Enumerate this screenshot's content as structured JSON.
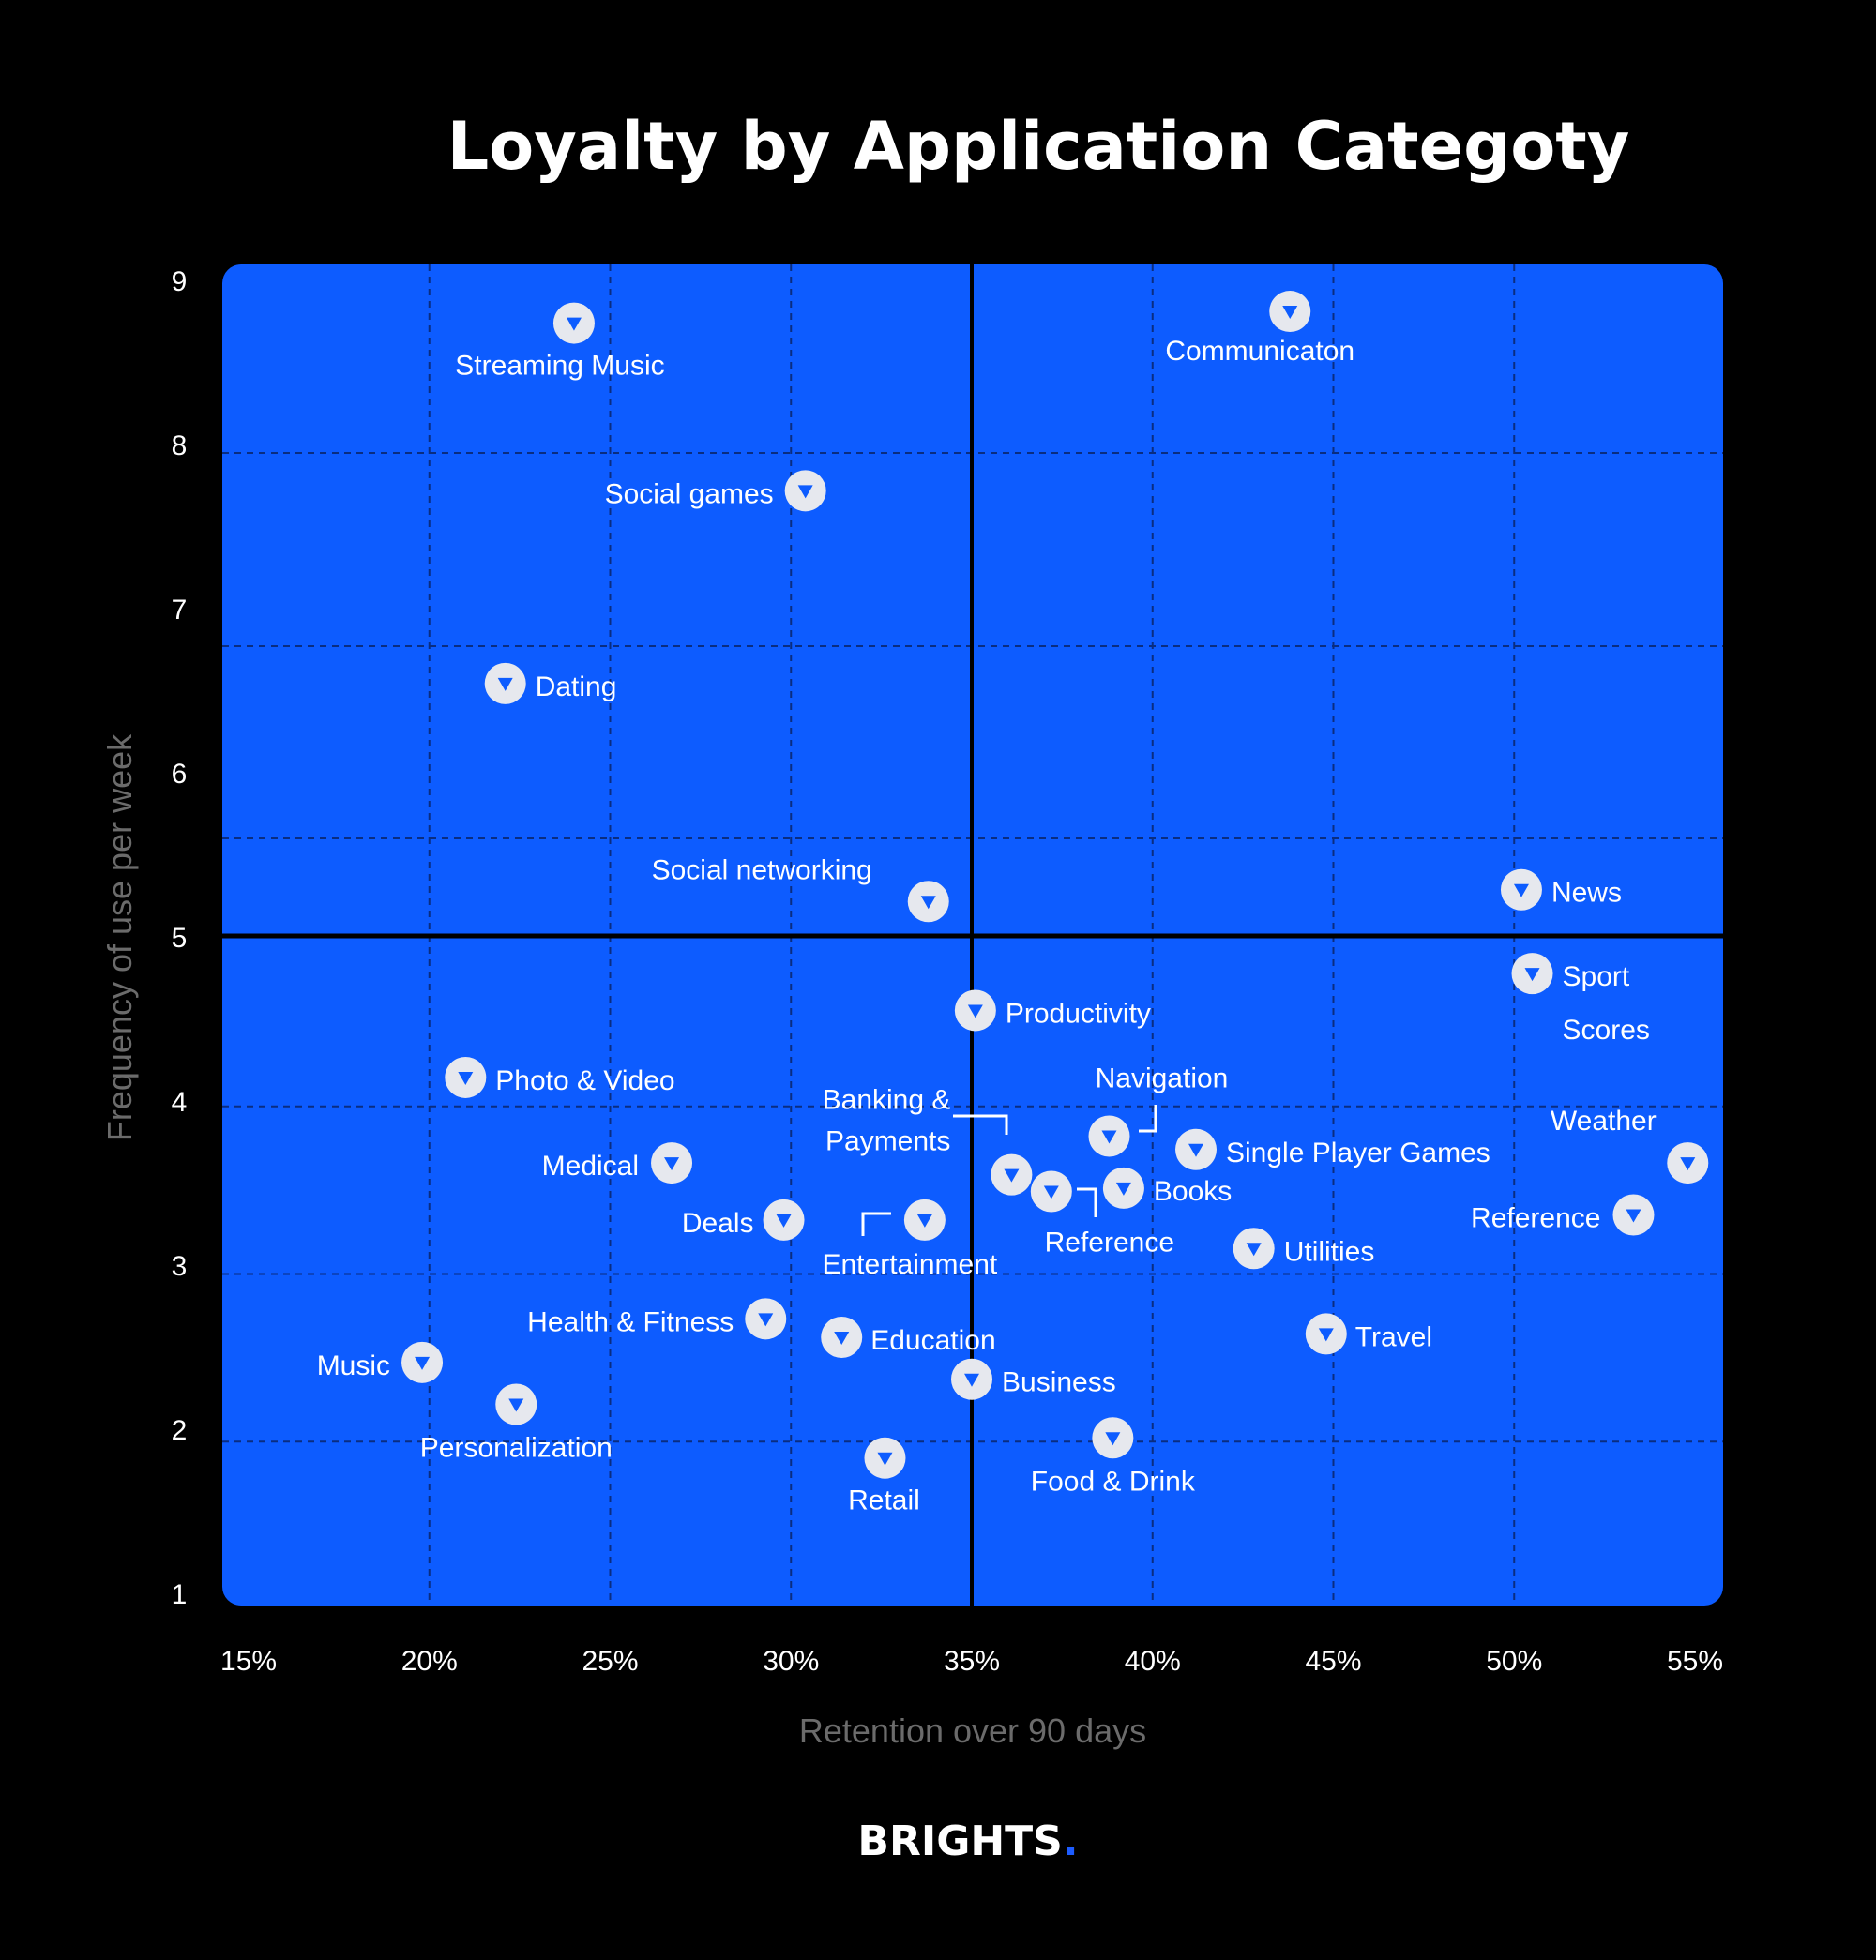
{
  "chart_data": {
    "type": "scatter",
    "title": "Loyalty by Application Categoty",
    "xlabel": "Retention over 90 days",
    "ylabel": "Frequency of use per week",
    "xlim": [
      0.15,
      0.55
    ],
    "ylim": [
      1,
      9
    ],
    "x_ticks": [
      "15%",
      "20%",
      "25%",
      "30%",
      "35%",
      "40%",
      "45%",
      "50%",
      "55%"
    ],
    "y_ticks": [
      "1",
      "2",
      "3",
      "4",
      "5",
      "6",
      "7",
      "8",
      "9"
    ],
    "quadrant_lines": {
      "x": 0.35,
      "y": 5
    },
    "grid": true,
    "colors": {
      "background": "#000000",
      "plot": "#0d5cff",
      "marker": "#e6e8ee",
      "marker_arrow": "#0d5cff",
      "axis_label": "#6b6b6b"
    },
    "points": [
      {
        "label": "Streaming Music",
        "x": 0.24,
        "y": 8.65
      },
      {
        "label": "Communicaton",
        "x": 0.438,
        "y": 8.72
      },
      {
        "label": "Social games",
        "x": 0.304,
        "y": 7.65
      },
      {
        "label": "Dating",
        "x": 0.221,
        "y": 6.5
      },
      {
        "label": "Social networking",
        "x": 0.338,
        "y": 5.2
      },
      {
        "label": "News",
        "x": 0.502,
        "y": 5.27
      },
      {
        "label": "Sport Scores",
        "x": 0.505,
        "y": 4.77
      },
      {
        "label": "Productivity",
        "x": 0.351,
        "y": 4.55
      },
      {
        "label": "Photo & Video",
        "x": 0.21,
        "y": 4.15
      },
      {
        "label": "Navigation",
        "x": 0.388,
        "y": 3.8
      },
      {
        "label": "Single Player Games",
        "x": 0.412,
        "y": 3.72
      },
      {
        "label": "Weather",
        "x": 0.548,
        "y": 3.64
      },
      {
        "label": "Medical",
        "x": 0.267,
        "y": 3.64
      },
      {
        "label": "Banking & Payments",
        "x": 0.361,
        "y": 3.57
      },
      {
        "label": "Reference",
        "x": 0.372,
        "y": 3.47
      },
      {
        "label": "Books",
        "x": 0.392,
        "y": 3.49
      },
      {
        "label": "Reference",
        "x": 0.533,
        "y": 3.33
      },
      {
        "label": "Deals",
        "x": 0.298,
        "y": 3.3
      },
      {
        "label": "Entertainment",
        "x": 0.337,
        "y": 3.3
      },
      {
        "label": "Utilities",
        "x": 0.428,
        "y": 3.13
      },
      {
        "label": "Health & Fitness",
        "x": 0.293,
        "y": 2.71
      },
      {
        "label": "Education",
        "x": 0.314,
        "y": 2.6
      },
      {
        "label": "Travel",
        "x": 0.448,
        "y": 2.62
      },
      {
        "label": "Music",
        "x": 0.198,
        "y": 2.45
      },
      {
        "label": "Business",
        "x": 0.35,
        "y": 2.35
      },
      {
        "label": "Personalization",
        "x": 0.224,
        "y": 2.2
      },
      {
        "label": "Food & Drink",
        "x": 0.389,
        "y": 2.0
      },
      {
        "label": "Retail",
        "x": 0.326,
        "y": 1.88
      }
    ]
  },
  "brand": {
    "name": "BRIGHTS",
    "dot": ".",
    "dot_color": "#1d5cff"
  }
}
